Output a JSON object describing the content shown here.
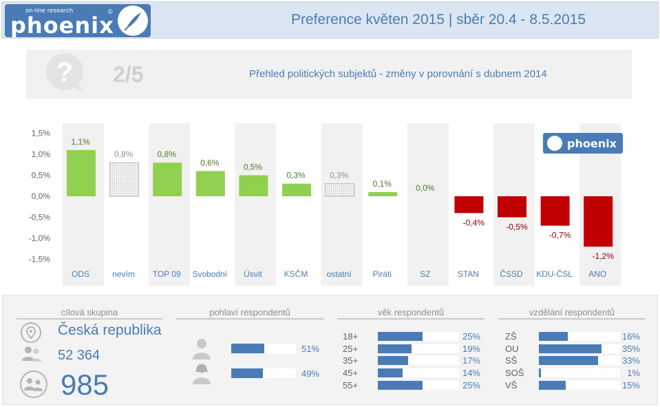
{
  "header": {
    "logo_small": "on-line research",
    "logo_big": "phoenix",
    "logo_copy": "©",
    "title": "Preference květen 2015 |  sběr 20.4 - 8.5.2015"
  },
  "subbar": {
    "slide_num": "2/5",
    "subtitle": "Přehled politických subjektů - změny v porovnání s dubnem 2014"
  },
  "chart_data": {
    "type": "bar",
    "categories": [
      "ODS",
      "nevím",
      "TOP 09",
      "Svobodní",
      "Úsvit",
      "KSČM",
      "ostatní",
      "Piráti",
      "SZ",
      "STAN",
      "ČSSD",
      "KDU-ČSL",
      "ANO"
    ],
    "values": [
      1.1,
      0.8,
      0.8,
      0.6,
      0.5,
      0.3,
      0.3,
      0.1,
      0.0,
      -0.4,
      -0.5,
      -0.7,
      -1.2
    ],
    "value_labels": [
      "1,1%",
      "0,8%",
      "0,8%",
      "0,6%",
      "0,5%",
      "0,3%",
      "0,3%",
      "0,1%",
      "0,0%",
      "-0,4%",
      "-0,5%",
      "-0,7%",
      "-1,2%"
    ],
    "ylim": [
      -1.5,
      1.5
    ],
    "yticks": [
      "1,5%",
      "1,0%",
      "0,5%",
      "0,0%",
      "-0,5%",
      "-1,0%",
      "-1,5%"
    ],
    "colors": {
      "positive": "#92d050",
      "negative": "#c00000",
      "neutral": "#e8e8e8"
    },
    "neutral_categories": [
      "nevím",
      "ostatní"
    ],
    "watermark": "phoenix"
  },
  "stats": {
    "target": {
      "heading": "cílová skupina",
      "country": "Česká republika",
      "population": "52 364",
      "respondents": "985"
    },
    "gender": {
      "heading": "pohlaví respondentů",
      "rows": [
        {
          "label": "",
          "value": "51%",
          "pct": 51
        },
        {
          "label": "",
          "value": "49%",
          "pct": 49
        }
      ]
    },
    "age": {
      "heading": "věk respondentů",
      "rows": [
        {
          "label": "18+",
          "value": "25%",
          "pct": 25
        },
        {
          "label": "25+",
          "value": "19%",
          "pct": 19
        },
        {
          "label": "35+",
          "value": "17%",
          "pct": 17
        },
        {
          "label": "45+",
          "value": "14%",
          "pct": 14
        },
        {
          "label": "55+",
          "value": "25%",
          "pct": 25
        }
      ]
    },
    "education": {
      "heading": "vzdělání respondentů",
      "rows": [
        {
          "label": "ZŠ",
          "value": "16%",
          "pct": 16
        },
        {
          "label": "OU",
          "value": "35%",
          "pct": 35
        },
        {
          "label": "SŠ",
          "value": "33%",
          "pct": 33
        },
        {
          "label": "SOŠ",
          "value": "1%",
          "pct": 1
        },
        {
          "label": "VŠ",
          "value": "15%",
          "pct": 15
        }
      ]
    }
  }
}
